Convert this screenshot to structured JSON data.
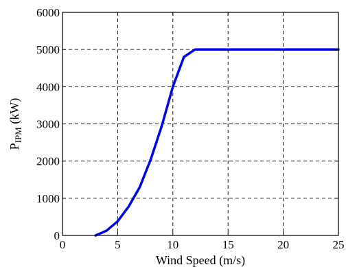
{
  "chart_data": {
    "type": "line",
    "xlabel": "Wind Speed (m/s)",
    "ylabel": {
      "main": "P",
      "subscript": "IPM",
      "unit": " (kW)"
    },
    "xlim": [
      0,
      25
    ],
    "ylim": [
      0,
      6000
    ],
    "xticks": [
      0,
      5,
      10,
      15,
      20,
      25
    ],
    "yticks": [
      0,
      1000,
      2000,
      3000,
      4000,
      5000,
      6000
    ],
    "grid": true,
    "series": [
      {
        "color": "#0000ff",
        "x": [
          3,
          4,
          5,
          6,
          7,
          8,
          9,
          10,
          11,
          12,
          25
        ],
        "y": [
          0,
          130,
          380,
          780,
          1300,
          2050,
          2950,
          4000,
          4800,
          5000,
          5000
        ]
      }
    ]
  }
}
